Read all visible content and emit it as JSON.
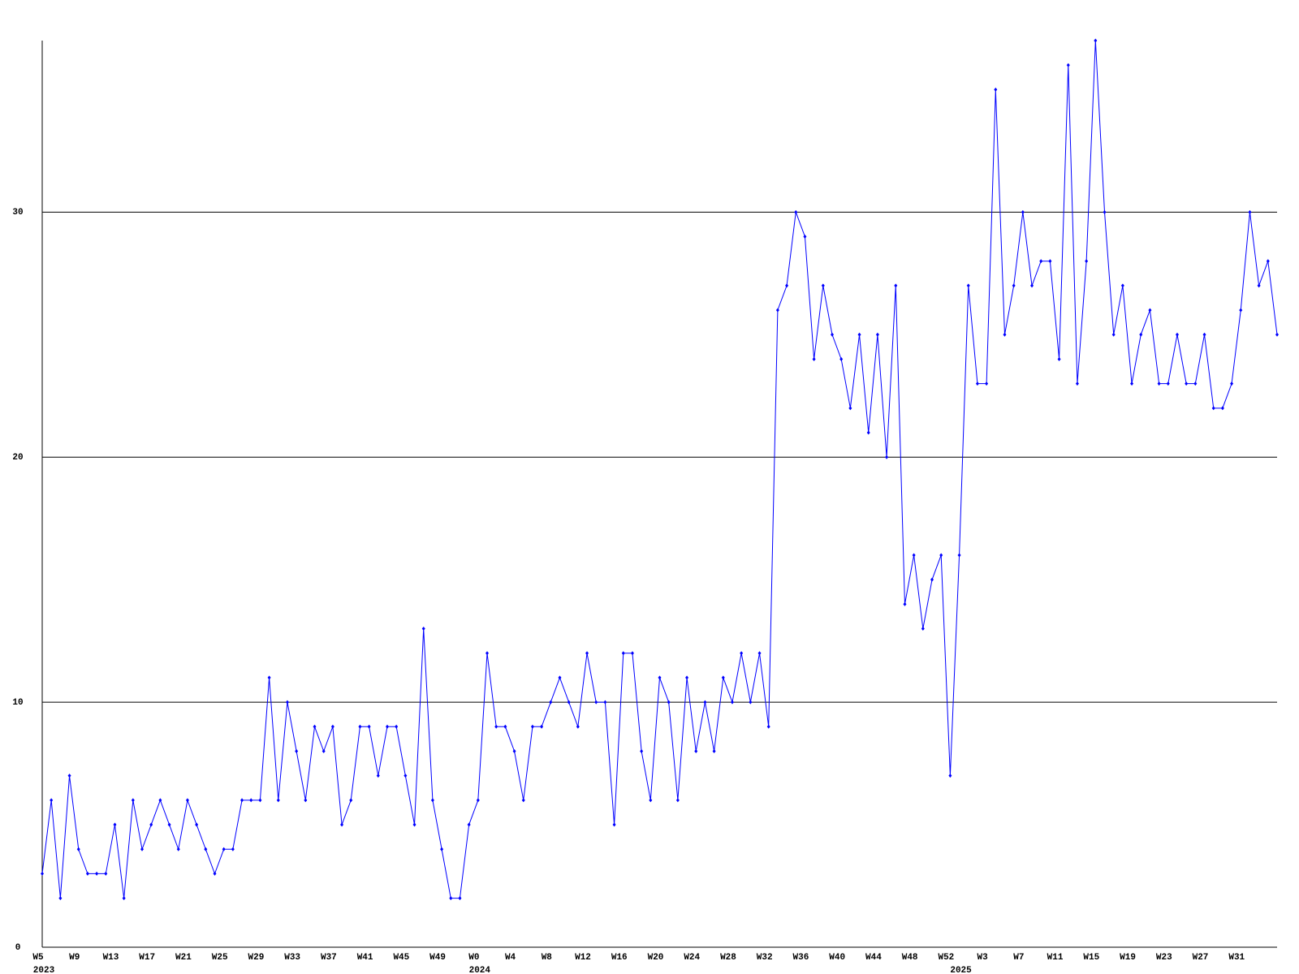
{
  "chart_data": {
    "type": "line",
    "categories": [
      "W5",
      null,
      null,
      null,
      "W9",
      null,
      null,
      null,
      "W13",
      null,
      null,
      null,
      "W17",
      null,
      null,
      null,
      "W21",
      null,
      null,
      null,
      "W25",
      null,
      null,
      null,
      "W29",
      null,
      null,
      null,
      "W33",
      null,
      null,
      null,
      "W37",
      null,
      null,
      null,
      "W41",
      null,
      null,
      null,
      "W45",
      null,
      null,
      null,
      "W49",
      null,
      null,
      null,
      "W0",
      null,
      null,
      null,
      "W4",
      null,
      null,
      null,
      "W8",
      null,
      null,
      null,
      "W12",
      null,
      null,
      null,
      "W16",
      null,
      null,
      null,
      "W20",
      null,
      null,
      null,
      "W24",
      null,
      null,
      null,
      "W28",
      null,
      null,
      null,
      "W32",
      null,
      null,
      null,
      "W36",
      null,
      null,
      null,
      "W40",
      null,
      null,
      null,
      "W44",
      null,
      null,
      null,
      "W48",
      null,
      null,
      null,
      "W52",
      null,
      null,
      null,
      "W3",
      null,
      null,
      null,
      "W7",
      null,
      null,
      null,
      "W11",
      null,
      null,
      null,
      "W15",
      null,
      null,
      null,
      "W19",
      null,
      null,
      null,
      "W23",
      null,
      null,
      null,
      "W27",
      null,
      null,
      null,
      "W31",
      null,
      null,
      null,
      null
    ],
    "year_labels": [
      "2023",
      null,
      null,
      null,
      null,
      null,
      null,
      null,
      null,
      null,
      null,
      null,
      null,
      null,
      null,
      null,
      null,
      null,
      null,
      null,
      null,
      null,
      null,
      null,
      null,
      null,
      null,
      null,
      null,
      null,
      null,
      null,
      null,
      null,
      null,
      null,
      null,
      null,
      null,
      null,
      null,
      null,
      null,
      null,
      null,
      null,
      null,
      null,
      "2024",
      null,
      null,
      null,
      null,
      null,
      null,
      null,
      null,
      null,
      null,
      null,
      null,
      null,
      null,
      null,
      null,
      null,
      null,
      null,
      null,
      null,
      null,
      null,
      null,
      null,
      null,
      null,
      null,
      null,
      null,
      null,
      null,
      null,
      null,
      null,
      null,
      null,
      null,
      null,
      null,
      null,
      null,
      null,
      null,
      null,
      null,
      null,
      null,
      null,
      null,
      null,
      null,
      "2025",
      null,
      null,
      null,
      null,
      null,
      null,
      null,
      null,
      null,
      null,
      null,
      null,
      null,
      null,
      null,
      null,
      null,
      null,
      null,
      null,
      null,
      null,
      null,
      null,
      null,
      null,
      null,
      null,
      null,
      null,
      null,
      null,
      null,
      null,
      null
    ],
    "series": [
      {
        "color": "#0000ff",
        "values": [
          3,
          6,
          2,
          7,
          4,
          3,
          3,
          3,
          5,
          2,
          6,
          4,
          5,
          6,
          5,
          4,
          6,
          5,
          4,
          3,
          4,
          4,
          6,
          6,
          6,
          11,
          6,
          10,
          8,
          6,
          9,
          8,
          9,
          5,
          6,
          9,
          9,
          7,
          9,
          9,
          7,
          5,
          13,
          6,
          4,
          2,
          2,
          5,
          6,
          12,
          9,
          9,
          8,
          6,
          9,
          9,
          10,
          11,
          10,
          9,
          12,
          10,
          10,
          5,
          12,
          12,
          8,
          6,
          11,
          10,
          6,
          11,
          8,
          10,
          8,
          11,
          10,
          12,
          10,
          12,
          9,
          26,
          27,
          30,
          29,
          24,
          27,
          25,
          24,
          22,
          25,
          21,
          25,
          20,
          27,
          14,
          16,
          13,
          15,
          16,
          7,
          16,
          27,
          23,
          23,
          35,
          25,
          27,
          30,
          27,
          28,
          28,
          24,
          36,
          23,
          28,
          37,
          30,
          25,
          27,
          23,
          25,
          26,
          23,
          23,
          25,
          23,
          23,
          25,
          22,
          22,
          23,
          26,
          30,
          27,
          28,
          25
        ]
      }
    ],
    "ylim": [
      0,
      37
    ],
    "yticks": [
      0,
      10,
      20,
      30
    ],
    "grid": true
  }
}
